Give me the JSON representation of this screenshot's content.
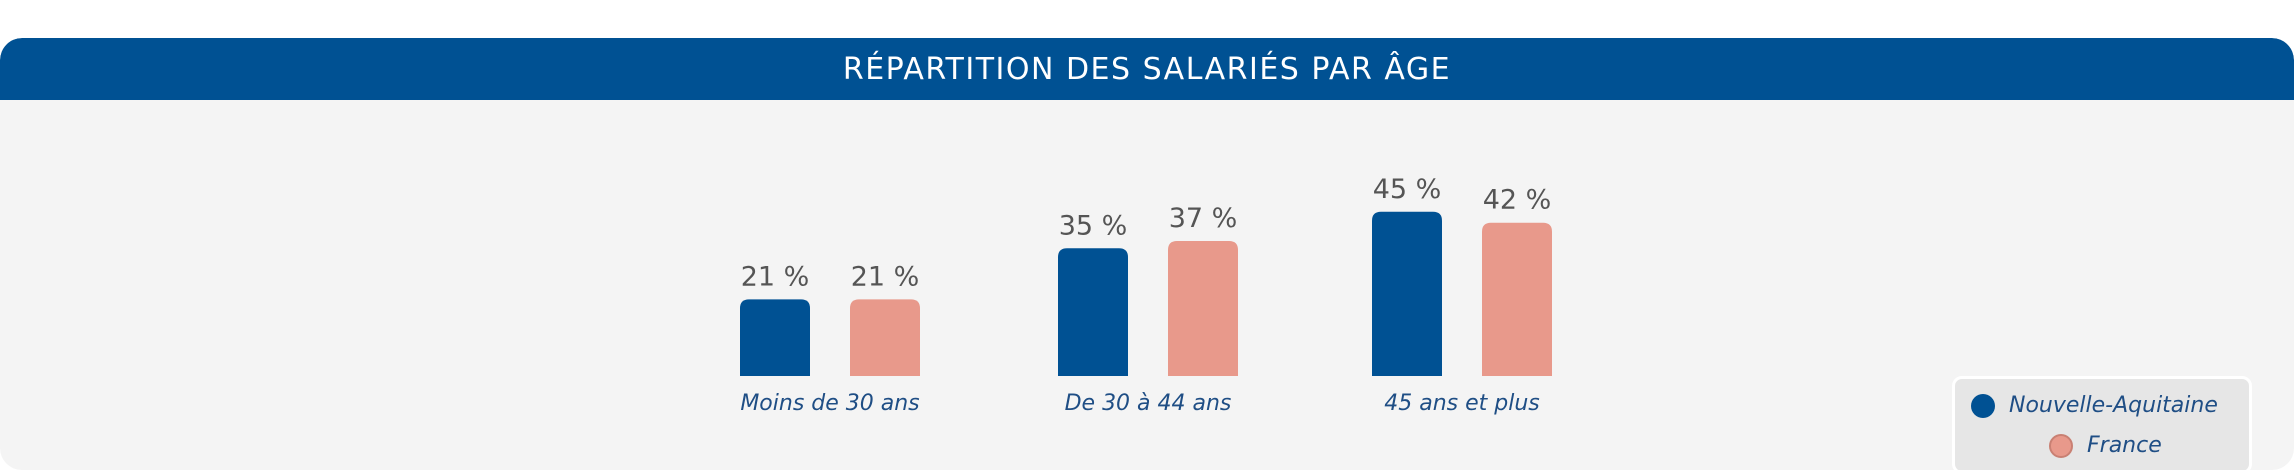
{
  "header": {
    "title": "RÉPARTITION DES SALARIÉS PAR ÂGE"
  },
  "chart_data": {
    "type": "bar",
    "title": "RÉPARTITION DES SALARIÉS PAR ÂGE",
    "categories": [
      "Moins de 30 ans",
      "De 30 à 44 ans",
      "45 ans et plus"
    ],
    "series": [
      {
        "name": "Nouvelle-Aquitaine",
        "values": [
          21,
          35,
          45
        ],
        "labels": [
          "21 %",
          "35 %",
          "45 %"
        ],
        "color": "#005193"
      },
      {
        "name": "France",
        "values": [
          21,
          37,
          42
        ],
        "labels": [
          "21 %",
          "37 %",
          "42 %"
        ],
        "color": "#e8998b"
      }
    ],
    "legend_position": "bottom-right",
    "grid": false,
    "axis_visible": false
  },
  "colors": {
    "header_bg": "#005193",
    "panel_bg": "#f4f4f4",
    "value_label": "#555555",
    "category_label": "#1f4e85"
  },
  "legend": {
    "items": [
      {
        "label": "Nouvelle-Aquitaine",
        "color": "#005193",
        "marker": "filled-circle-icon"
      },
      {
        "label": "France",
        "color": "#e8998b",
        "marker": "outlined-circle-icon"
      }
    ]
  }
}
